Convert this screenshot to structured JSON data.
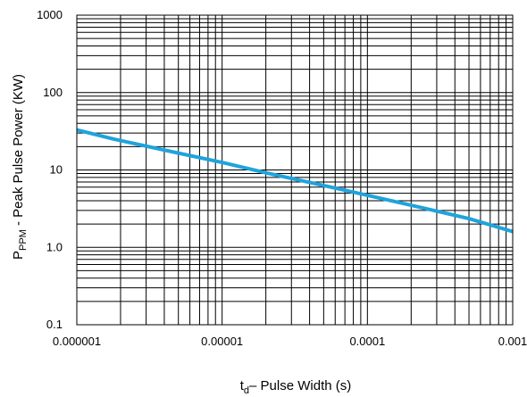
{
  "chart_data": {
    "type": "line",
    "title": "",
    "xlabel": {
      "main": "t",
      "sub": "d",
      "rest": "– Pulse Width (s)"
    },
    "ylabel": {
      "main": "P",
      "sub": "PPM",
      "rest": " - Peak Pulse Power (KW)"
    },
    "x_scale": "log",
    "y_scale": "log",
    "xlim": [
      1e-06,
      0.001
    ],
    "ylim": [
      0.1,
      1000
    ],
    "x_ticks": [
      {
        "value": 1e-06,
        "label": "0.000001"
      },
      {
        "value": 1e-05,
        "label": "0.00001"
      },
      {
        "value": 0.0001,
        "label": "0.0001"
      },
      {
        "value": 0.001,
        "label": "0.001"
      }
    ],
    "y_ticks": [
      {
        "value": 0.1,
        "label": "0.1"
      },
      {
        "value": 1,
        "label": "1.0"
      },
      {
        "value": 10,
        "label": "10"
      },
      {
        "value": 100,
        "label": "100"
      },
      {
        "value": 1000,
        "label": "1000"
      }
    ],
    "grid": true,
    "series": [
      {
        "color": "#1fa3dc",
        "x": [
          1e-06,
          1.8e-06,
          5e-06,
          1e-05,
          2e-05,
          5e-05,
          0.0001,
          0.0002,
          0.0005,
          0.001
        ],
        "y": [
          33,
          25,
          16.5,
          12.5,
          9.2,
          6.3,
          4.7,
          3.5,
          2.35,
          1.6
        ]
      }
    ]
  }
}
